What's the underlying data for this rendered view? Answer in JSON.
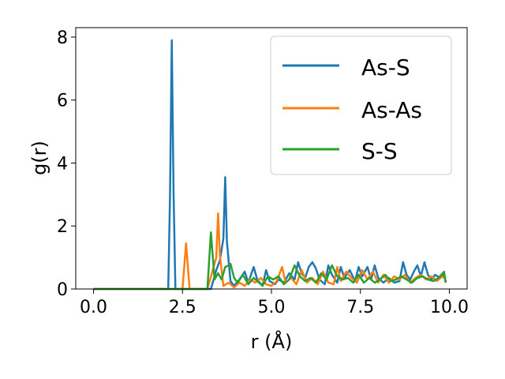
{
  "chart_data": {
    "type": "line",
    "xlabel": "r (Å)",
    "ylabel": "g(r)",
    "xlim": [
      -0.5,
      10.5
    ],
    "ylim": [
      0,
      8.3
    ],
    "xticks": [
      "0.0",
      "2.5",
      "5.0",
      "7.5",
      "10.0"
    ],
    "xtick_values": [
      0,
      2.5,
      5,
      7.5,
      10
    ],
    "yticks": [
      "0",
      "2",
      "4",
      "6",
      "8"
    ],
    "ytick_values": [
      0,
      2,
      4,
      6,
      8
    ],
    "grid": false,
    "legend_position": "top-right",
    "series": [
      {
        "name": "As-S",
        "color": "#1f77b4",
        "points": [
          [
            0,
            0
          ],
          [
            2.1,
            0
          ],
          [
            2.15,
            3.0
          ],
          [
            2.2,
            7.9
          ],
          [
            2.25,
            3.0
          ],
          [
            2.3,
            0
          ],
          [
            3.3,
            0
          ],
          [
            3.45,
            0.6
          ],
          [
            3.55,
            0.9
          ],
          [
            3.65,
            1.6
          ],
          [
            3.7,
            3.55
          ],
          [
            3.75,
            1.5
          ],
          [
            3.85,
            0.25
          ],
          [
            3.95,
            0.1
          ],
          [
            4.1,
            0.3
          ],
          [
            4.25,
            0.55
          ],
          [
            4.35,
            0.2
          ],
          [
            4.5,
            0.7
          ],
          [
            4.6,
            0.3
          ],
          [
            4.75,
            0.1
          ],
          [
            4.85,
            0.6
          ],
          [
            4.95,
            0.25
          ],
          [
            5.1,
            0.15
          ],
          [
            5.2,
            0.3
          ],
          [
            5.35,
            0.2
          ],
          [
            5.5,
            0.5
          ],
          [
            5.65,
            0.3
          ],
          [
            5.75,
            0.85
          ],
          [
            5.85,
            0.5
          ],
          [
            5.95,
            0.35
          ],
          [
            6.05,
            0.7
          ],
          [
            6.15,
            0.85
          ],
          [
            6.25,
            0.65
          ],
          [
            6.35,
            0.3
          ],
          [
            6.5,
            0.15
          ],
          [
            6.6,
            0.75
          ],
          [
            6.7,
            0.45
          ],
          [
            6.85,
            0.2
          ],
          [
            6.95,
            0.7
          ],
          [
            7.05,
            0.35
          ],
          [
            7.2,
            0.6
          ],
          [
            7.35,
            0.25
          ],
          [
            7.45,
            0.7
          ],
          [
            7.55,
            0.4
          ],
          [
            7.7,
            0.7
          ],
          [
            7.8,
            0.3
          ],
          [
            7.9,
            0.75
          ],
          [
            8.0,
            0.35
          ],
          [
            8.15,
            0.2
          ],
          [
            8.3,
            0.35
          ],
          [
            8.45,
            0.2
          ],
          [
            8.6,
            0.25
          ],
          [
            8.7,
            0.85
          ],
          [
            8.8,
            0.45
          ],
          [
            8.9,
            0.3
          ],
          [
            9.0,
            0.55
          ],
          [
            9.1,
            0.75
          ],
          [
            9.2,
            0.4
          ],
          [
            9.3,
            0.85
          ],
          [
            9.4,
            0.45
          ],
          [
            9.5,
            0.3
          ],
          [
            9.6,
            0.45
          ],
          [
            9.75,
            0.35
          ],
          [
            9.85,
            0.45
          ],
          [
            9.9,
            0.2
          ]
        ]
      },
      {
        "name": "As-As",
        "color": "#ff7f0e",
        "points": [
          [
            0,
            0
          ],
          [
            2.5,
            0
          ],
          [
            2.6,
            1.45
          ],
          [
            2.7,
            0
          ],
          [
            3.2,
            0
          ],
          [
            3.35,
            0.6
          ],
          [
            3.45,
            1.0
          ],
          [
            3.5,
            2.4
          ],
          [
            3.55,
            1.1
          ],
          [
            3.65,
            0.1
          ],
          [
            3.8,
            0.2
          ],
          [
            3.95,
            0.05
          ],
          [
            4.1,
            0.2
          ],
          [
            4.25,
            0.1
          ],
          [
            4.4,
            0.3
          ],
          [
            4.55,
            0.2
          ],
          [
            4.7,
            0.35
          ],
          [
            4.85,
            0.15
          ],
          [
            5.0,
            0.1
          ],
          [
            5.15,
            0.25
          ],
          [
            5.3,
            0.7
          ],
          [
            5.4,
            0.2
          ],
          [
            5.55,
            0.35
          ],
          [
            5.7,
            0.15
          ],
          [
            5.85,
            0.6
          ],
          [
            6.0,
            0.2
          ],
          [
            6.15,
            0.35
          ],
          [
            6.3,
            0.15
          ],
          [
            6.45,
            0.55
          ],
          [
            6.6,
            0.2
          ],
          [
            6.75,
            0.15
          ],
          [
            6.85,
            0.7
          ],
          [
            6.95,
            0.25
          ],
          [
            7.1,
            0.55
          ],
          [
            7.25,
            0.35
          ],
          [
            7.4,
            0.2
          ],
          [
            7.55,
            0.6
          ],
          [
            7.7,
            0.3
          ],
          [
            7.85,
            0.55
          ],
          [
            8.0,
            0.2
          ],
          [
            8.15,
            0.45
          ],
          [
            8.3,
            0.2
          ],
          [
            8.45,
            0.4
          ],
          [
            8.6,
            0.3
          ],
          [
            8.75,
            0.45
          ],
          [
            8.9,
            0.2
          ],
          [
            9.05,
            0.35
          ],
          [
            9.2,
            0.45
          ],
          [
            9.35,
            0.3
          ],
          [
            9.5,
            0.4
          ],
          [
            9.65,
            0.25
          ],
          [
            9.8,
            0.4
          ],
          [
            9.9,
            0.3
          ]
        ]
      },
      {
        "name": "S-S",
        "color": "#2ca02c",
        "points": [
          [
            0,
            0
          ],
          [
            3.2,
            0
          ],
          [
            3.3,
            1.8
          ],
          [
            3.4,
            0.3
          ],
          [
            3.5,
            0.5
          ],
          [
            3.6,
            0.3
          ],
          [
            3.7,
            0.7
          ],
          [
            3.8,
            0.75
          ],
          [
            3.85,
            0.8
          ],
          [
            3.95,
            0.35
          ],
          [
            4.05,
            0.2
          ],
          [
            4.2,
            0.45
          ],
          [
            4.35,
            0.15
          ],
          [
            4.5,
            0.35
          ],
          [
            4.65,
            0.2
          ],
          [
            4.75,
            0.1
          ],
          [
            4.9,
            0.4
          ],
          [
            5.05,
            0.3
          ],
          [
            5.2,
            0.4
          ],
          [
            5.35,
            0.15
          ],
          [
            5.5,
            0.3
          ],
          [
            5.65,
            0.75
          ],
          [
            5.8,
            0.4
          ],
          [
            5.95,
            0.25
          ],
          [
            6.1,
            0.35
          ],
          [
            6.25,
            0.2
          ],
          [
            6.4,
            0.5
          ],
          [
            6.55,
            0.3
          ],
          [
            6.7,
            0.75
          ],
          [
            6.85,
            0.4
          ],
          [
            7.0,
            0.3
          ],
          [
            7.15,
            0.35
          ],
          [
            7.3,
            0.2
          ],
          [
            7.45,
            0.45
          ],
          [
            7.6,
            0.2
          ],
          [
            7.75,
            0.35
          ],
          [
            7.9,
            0.2
          ],
          [
            8.05,
            0.3
          ],
          [
            8.2,
            0.45
          ],
          [
            8.35,
            0.25
          ],
          [
            8.5,
            0.3
          ],
          [
            8.65,
            0.4
          ],
          [
            8.8,
            0.3
          ],
          [
            8.95,
            0.2
          ],
          [
            9.1,
            0.35
          ],
          [
            9.25,
            0.4
          ],
          [
            9.4,
            0.3
          ],
          [
            9.55,
            0.25
          ],
          [
            9.7,
            0.35
          ],
          [
            9.85,
            0.55
          ],
          [
            9.9,
            0.2
          ]
        ]
      }
    ]
  }
}
